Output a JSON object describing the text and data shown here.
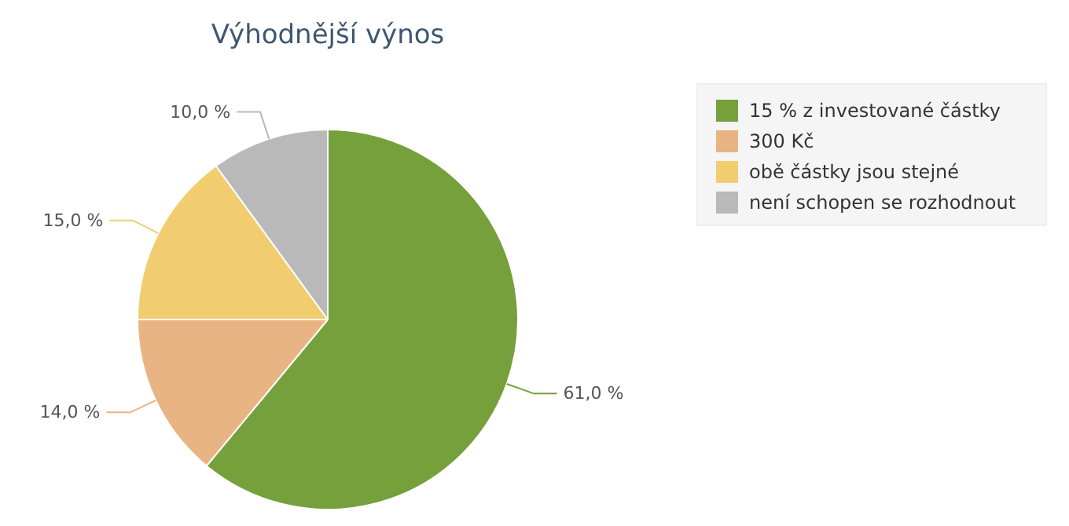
{
  "chart_data": {
    "type": "pie",
    "title": "Výhodnější výnos",
    "categories": [
      "15 % z investované částky",
      "300 Kč",
      "obě částky jsou stejné",
      "není schopen se rozhodnout"
    ],
    "values": [
      61,
      14,
      15,
      10
    ],
    "colors": [
      "#76a03c",
      "#e9b483",
      "#f2cd6f",
      "#b9b9b9"
    ],
    "value_labels": [
      "61,0 %",
      "14,0 %",
      "15,0 %",
      "10,0 %"
    ],
    "legend": "top right"
  }
}
